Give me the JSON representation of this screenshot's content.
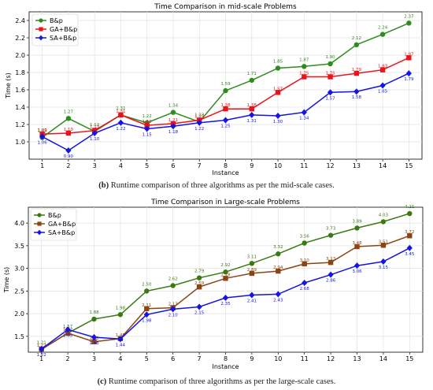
{
  "charts": [
    {
      "title": "Time Comparison in mid-scale Problems",
      "xlabel": "Instance",
      "ylabel": "Time (s)",
      "caption_tag": "(b)",
      "caption_text": " Runtime comparison of three algorithms as per the mid-scale cases."
    },
    {
      "title": "Time Comparison in Large-scale Problems",
      "xlabel": "Instance",
      "ylabel": "Time (s)",
      "caption_tag": "(c)",
      "caption_text": " Runtime comparison of three algorithms as per the large-scale cases."
    }
  ],
  "chart_data": [
    {
      "type": "line",
      "title": "Time Comparison in mid-scale Problems",
      "xlabel": "Instance",
      "ylabel": "Time (s)",
      "x": [
        1,
        2,
        3,
        4,
        5,
        6,
        7,
        8,
        9,
        10,
        11,
        12,
        13,
        14,
        15
      ],
      "xlim": [
        0.5,
        15.5
      ],
      "ylim": [
        0.8,
        2.5
      ],
      "yticks": [
        1.0,
        1.2,
        1.4,
        1.6,
        1.8,
        2.0,
        2.2,
        2.4
      ],
      "grid": true,
      "legend": "top-left",
      "series": [
        {
          "name": "B&p",
          "color": "#2e8b1e",
          "marker": "circle",
          "values": [
            1.05,
            1.27,
            1.12,
            1.31,
            1.22,
            1.34,
            1.23,
            1.59,
            1.71,
            1.85,
            1.87,
            1.9,
            2.12,
            2.24,
            2.37
          ]
        },
        {
          "name": "GA+B&p",
          "color": "#e8131b",
          "marker": "square",
          "values": [
            1.09,
            1.1,
            1.13,
            1.31,
            1.19,
            1.21,
            1.25,
            1.38,
            1.38,
            1.57,
            1.75,
            1.75,
            1.79,
            1.83,
            1.97
          ]
        },
        {
          "name": "SA+B&p",
          "color": "#1414e6",
          "marker": "diamond",
          "values": [
            1.06,
            0.9,
            1.1,
            1.22,
            1.15,
            1.18,
            1.22,
            1.25,
            1.31,
            1.3,
            1.34,
            1.57,
            1.58,
            1.65,
            1.79
          ]
        }
      ],
      "point_labels": [
        [
          "1.05",
          "1.27",
          "1.12",
          "1.31",
          "1.22",
          "1.34",
          "1.23",
          "1.59",
          "1.71",
          "1.85",
          "1.87",
          "1.90",
          "2.12",
          "2.24",
          "2.37"
        ],
        [
          "1.09",
          "1.10",
          "1.13",
          "1.31",
          "1.19",
          "1.21",
          "1.25",
          "1.38",
          "1.38",
          "1.57",
          "1.75",
          "1.75",
          "1.79",
          "1.83",
          "1.97"
        ],
        [
          "1.06",
          "0.90",
          "1.10",
          "1.22",
          "1.15",
          "1.18",
          "1.22",
          "1.25",
          "1.31",
          "1.30",
          "1.34",
          "1.57",
          "1.58",
          "1.65",
          "1.79"
        ]
      ]
    },
    {
      "type": "line",
      "title": "Time Comparison in Large-scale Problems",
      "xlabel": "Instance",
      "ylabel": "Time (s)",
      "x": [
        1,
        2,
        3,
        4,
        5,
        6,
        7,
        8,
        9,
        10,
        11,
        12,
        13,
        14,
        15
      ],
      "xlim": [
        0.5,
        15.5
      ],
      "ylim": [
        1.15,
        4.35
      ],
      "yticks": [
        1.5,
        2.0,
        2.5,
        3.0,
        3.5,
        4.0
      ],
      "grid": true,
      "legend": "top-left",
      "series": [
        {
          "name": "B&p",
          "color": "#3a7a12",
          "marker": "circle",
          "values": [
            1.21,
            1.57,
            1.88,
            1.98,
            2.5,
            2.62,
            2.79,
            2.92,
            3.11,
            3.32,
            3.56,
            3.73,
            3.89,
            4.03,
            4.21
          ]
        },
        {
          "name": "GA+B&p",
          "color": "#8b4513",
          "marker": "square",
          "values": [
            1.22,
            1.57,
            1.38,
            1.45,
            2.11,
            2.13,
            2.59,
            2.78,
            2.89,
            2.94,
            3.1,
            3.13,
            3.48,
            3.51,
            3.72
          ]
        },
        {
          "name": "SA+B&p",
          "color": "#1414e6",
          "marker": "diamond",
          "values": [
            1.22,
            1.65,
            1.48,
            1.44,
            1.98,
            2.1,
            2.15,
            2.35,
            2.41,
            2.43,
            2.68,
            2.86,
            3.06,
            3.15,
            3.45
          ]
        }
      ],
      "point_labels": [
        [
          "1.21",
          "1.57",
          "1.88",
          "1.98",
          "2.50",
          "2.62",
          "2.79",
          "2.92",
          "3.11",
          "3.32",
          "3.56",
          "3.73",
          "3.89",
          "4.03",
          "4.21"
        ],
        [
          "1.22",
          "1.57",
          "1.38",
          "1.45",
          "2.11",
          "2.13",
          "2.59",
          "2.78",
          "2.89",
          "2.94",
          "3.10",
          "3.13",
          "3.48",
          "3.51",
          "3.72"
        ],
        [
          "1.22",
          "1.65",
          "1.48",
          "1.44",
          "1.98",
          "2.10",
          "2.15",
          "2.35",
          "2.41",
          "2.43",
          "2.68",
          "2.86",
          "3.06",
          "3.15",
          "3.45"
        ]
      ]
    }
  ]
}
